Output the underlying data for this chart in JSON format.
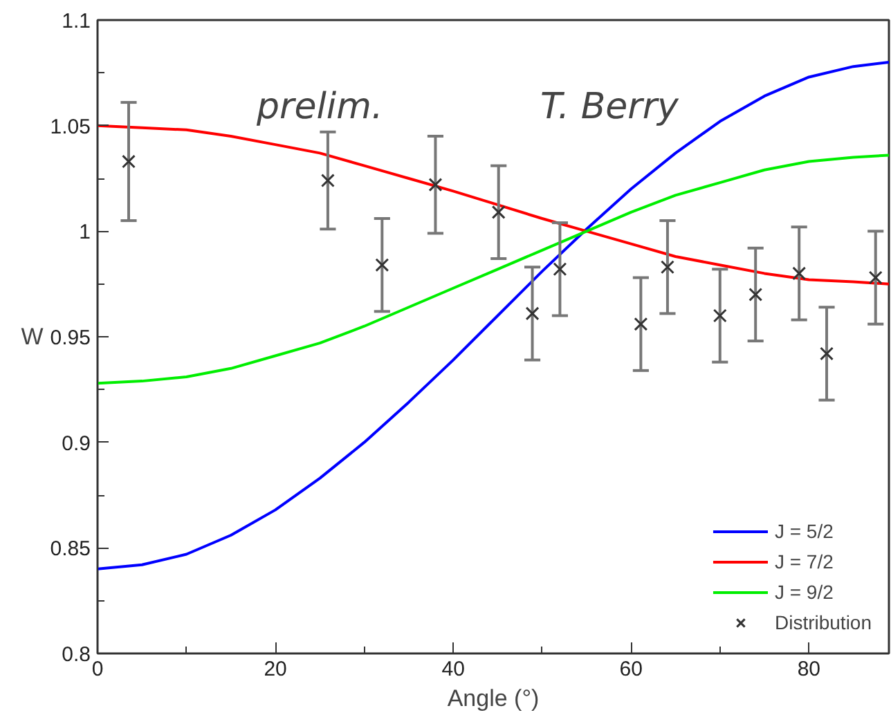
{
  "chart_data": {
    "type": "line",
    "xlabel": "Angle (°)",
    "ylabel": "W",
    "annotations": [
      "prelim.",
      "T. Berry"
    ],
    "xlim": [
      0,
      89
    ],
    "ylim": [
      0.8,
      1.1
    ],
    "xticks": [
      0,
      {
        "value": 10,
        "label": null
      },
      20,
      {
        "value": 30,
        "label": null
      },
      40,
      {
        "value": 50,
        "label": null
      },
      60,
      {
        "value": 70,
        "label": null
      },
      80
    ],
    "yticks": [
      0.8,
      {
        "value": 0.825,
        "label": null
      },
      0.85,
      {
        "value": 0.875,
        "label": null
      },
      0.9,
      {
        "value": 0.925,
        "label": null
      },
      0.95,
      {
        "value": 0.975,
        "label": null
      },
      1,
      {
        "value": 1.025,
        "label": null
      },
      1.05,
      {
        "value": 1.075,
        "label": null
      },
      1.1
    ],
    "grid": false,
    "legend": "bottom right",
    "series": [
      {
        "name": "J = 5/2",
        "color": "#0000ff",
        "line_style": "solid",
        "x": [
          0,
          5,
          10,
          15,
          20,
          25,
          30,
          35,
          40,
          45,
          50,
          55,
          60,
          65,
          70,
          75,
          80,
          85,
          89
        ],
        "values": [
          0.84,
          0.842,
          0.847,
          0.856,
          0.868,
          0.883,
          0.9,
          0.919,
          0.939,
          0.96,
          0.981,
          1.001,
          1.02,
          1.037,
          1.052,
          1.064,
          1.073,
          1.078,
          1.08
        ]
      },
      {
        "name": "J = 7/2",
        "color": "#ff0000",
        "line_style": "solid",
        "x": [
          0,
          5,
          10,
          15,
          20,
          25,
          30,
          35,
          40,
          45,
          50,
          55,
          60,
          65,
          70,
          75,
          80,
          85,
          89
        ],
        "values": [
          1.05,
          1.049,
          1.048,
          1.045,
          1.041,
          1.037,
          1.031,
          1.025,
          1.019,
          1.0125,
          1.006,
          1.0,
          0.994,
          0.988,
          0.984,
          0.98,
          0.977,
          0.976,
          0.975
        ]
      },
      {
        "name": "J = 9/2",
        "color": "#00ee00",
        "line_style": "solid",
        "x": [
          0,
          5,
          10,
          15,
          20,
          25,
          30,
          35,
          40,
          45,
          50,
          55,
          60,
          65,
          70,
          75,
          80,
          85,
          89
        ],
        "values": [
          0.928,
          0.929,
          0.931,
          0.935,
          0.941,
          0.947,
          0.955,
          0.964,
          0.973,
          0.982,
          0.991,
          1.0,
          1.009,
          1.017,
          1.023,
          1.029,
          1.033,
          1.035,
          1.036
        ]
      },
      {
        "name": "Distribution",
        "type": "scatter",
        "marker": "cross",
        "color": "#333333",
        "x": [
          3.5,
          25.9,
          32.0,
          38.0,
          45.1,
          48.9,
          52.0,
          61.1,
          64.1,
          70.0,
          74.0,
          78.9,
          82.0,
          87.5
        ],
        "values": [
          1.033,
          1.024,
          0.984,
          1.022,
          1.009,
          0.961,
          0.982,
          0.956,
          0.983,
          0.96,
          0.97,
          0.98,
          0.942,
          0.978
        ],
        "errors": [
          0.028,
          0.023,
          0.022,
          0.023,
          0.022,
          0.022,
          0.022,
          0.022,
          0.022,
          0.022,
          0.022,
          0.022,
          0.022,
          0.022
        ]
      }
    ]
  }
}
